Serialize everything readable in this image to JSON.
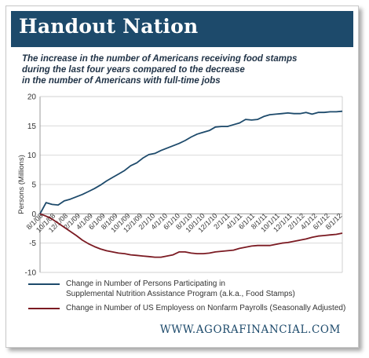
{
  "header": {
    "title": "Handout Nation"
  },
  "subtitle_lines": [
    "The increase in the number of Americans receiving food stamps",
    "during the last four years compared to the decrease",
    "in the number of Americans with full-time jobs"
  ],
  "footer": {
    "url": "WWW.AGORAFINANCIAL.COM"
  },
  "colors": {
    "header_bg": "#1d4a6b",
    "food_stamps": "#1d4a6b",
    "payrolls": "#7b1a22",
    "grid": "#d9d9d9"
  },
  "chart_data": {
    "type": "line",
    "ylabel": "Persons (Millions)",
    "ylim": [
      -10,
      20
    ],
    "yticks": [
      -10,
      -5,
      0,
      5,
      10,
      15,
      20
    ],
    "x_tick_labels": [
      "8/1/08",
      "10/1/08",
      "12/1/08",
      "2/1/09",
      "4/1/09",
      "6/1/09",
      "8/1/09",
      "10/1/09",
      "12/1/09",
      "2/1/10",
      "4/1/10",
      "6/1/10",
      "8/1/10",
      "10/1/10",
      "12/1/10",
      "2/1/11",
      "4/1/11",
      "6/1/11",
      "8/1/11",
      "10/1/11",
      "12/1/11",
      "2/1/12",
      "4/1/12",
      "6/1/12",
      "8/1/12"
    ],
    "grid": true,
    "legend_position": "bottom",
    "series": [
      {
        "name": "Change in Number of Persons Participating in Supplemental Nutrition Assistance Program (a.k.a., Food Stamps)",
        "legend_lines": [
          "Change in Number of Persons Participating in",
          "Supplemental Nutrition Assistance Program (a.k.a., Food Stamps)"
        ],
        "color": "#1d4a6b",
        "values": [
          0,
          1.9,
          1.6,
          1.5,
          2.2,
          2.5,
          2.9,
          3.3,
          3.8,
          4.3,
          4.9,
          5.6,
          6.2,
          6.8,
          7.4,
          8.2,
          8.7,
          9.5,
          10.1,
          10.3,
          10.8,
          11.2,
          11.6,
          12.0,
          12.5,
          13.1,
          13.6,
          13.9,
          14.2,
          14.8,
          14.9,
          14.9,
          15.2,
          15.5,
          16.1,
          16.0,
          16.1,
          16.6,
          16.9,
          17.0,
          17.1,
          17.2,
          17.1,
          17.1,
          17.3,
          17.0,
          17.3,
          17.3,
          17.4,
          17.4,
          17.5
        ]
      },
      {
        "name": "Change in Number of US Employess on Nonfarm Payrolls (Seasonally Adjusted)",
        "legend_lines": [
          "Change in Number of US Employess on Nonfarm Payrolls (Seasonally Adjusted)"
        ],
        "color": "#7b1a22",
        "values": [
          0,
          -0.4,
          -0.9,
          -1.6,
          -2.3,
          -3.0,
          -3.7,
          -4.5,
          -5.1,
          -5.6,
          -6.0,
          -6.3,
          -6.5,
          -6.7,
          -6.8,
          -7.0,
          -7.1,
          -7.2,
          -7.3,
          -7.4,
          -7.4,
          -7.2,
          -7.0,
          -6.5,
          -6.5,
          -6.7,
          -6.8,
          -6.8,
          -6.7,
          -6.5,
          -6.4,
          -6.3,
          -6.2,
          -5.9,
          -5.7,
          -5.5,
          -5.4,
          -5.4,
          -5.4,
          -5.2,
          -5.0,
          -4.9,
          -4.7,
          -4.5,
          -4.3,
          -4.0,
          -3.8,
          -3.7,
          -3.6,
          -3.5,
          -3.3
        ]
      }
    ]
  }
}
